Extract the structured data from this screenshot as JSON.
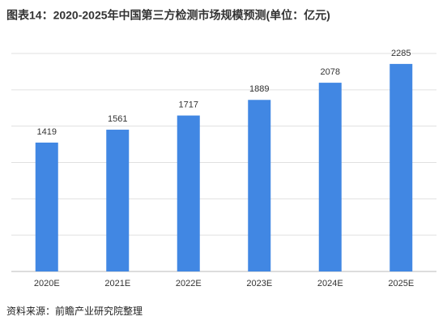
{
  "chart_data": {
    "type": "bar",
    "title": "图表14：2020-2025年中国第三方检测市场规模预测(单位：亿元)",
    "categories": [
      "2020E",
      "2021E",
      "2022E",
      "2023E",
      "2024E",
      "2025E"
    ],
    "values": [
      1419,
      1561,
      1717,
      1889,
      2078,
      2285
    ],
    "color": "#4187e3",
    "ylim": [
      0,
      2400
    ],
    "yticks": [
      0,
      400,
      800,
      1200,
      1600,
      2000,
      2400
    ],
    "grid": true,
    "source": "资料来源：前瞻产业研究院整理"
  }
}
